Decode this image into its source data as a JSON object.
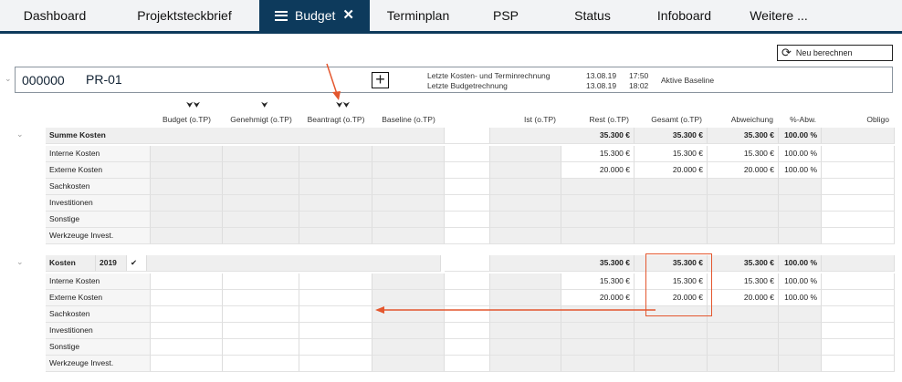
{
  "nav": {
    "tabs": [
      "Dashboard",
      "Projektsteckbrief",
      "Budget",
      "Terminplan",
      "PSP",
      "Status",
      "Infoboard",
      "Weitere ..."
    ],
    "active": 2
  },
  "toolbar": {
    "recalc_label": "Neu berechnen"
  },
  "project": {
    "id": "000000",
    "name": "PR-01",
    "cost_calc_label": "Letzte Kosten- und Terminrechnung",
    "cost_calc_date": "13.08.19",
    "cost_calc_time": "17:50",
    "budget_calc_label": "Letzte Budgetrechnung",
    "budget_calc_date": "13.08.19",
    "budget_calc_time": "18:02",
    "baseline_label": "Aktive Baseline"
  },
  "columns": [
    "Budget (o.TP)",
    "Genehmigt (o.TP)",
    "Beantragt (o.TP)",
    "Baseline (o.TP)",
    "Ist (o.TP)",
    "Rest (o.TP)",
    "Gesamt (o.TP)",
    "Abweichung",
    "%-Abw.",
    "Obligo"
  ],
  "section1": {
    "title": "Summe Kosten",
    "totals": {
      "rest": "35.300 €",
      "gesamt": "35.300 €",
      "abw": "35.300 €",
      "pct": "100.00 %"
    },
    "rows": [
      {
        "label": "Interne Kosten",
        "rest": "15.300 €",
        "gesamt": "15.300 €",
        "abw": "15.300 €",
        "pct": "100.00 %"
      },
      {
        "label": "Externe Kosten",
        "rest": "20.000 €",
        "gesamt": "20.000 €",
        "abw": "20.000 €",
        "pct": "100.00 %"
      },
      {
        "label": "Sachkosten"
      },
      {
        "label": "Investitionen"
      },
      {
        "label": "Sonstige"
      },
      {
        "label": "Werkzeuge Invest."
      }
    ]
  },
  "section2": {
    "title": "Kosten",
    "year": "2019",
    "totals": {
      "rest": "35.300 €",
      "gesamt": "35.300 €",
      "abw": "35.300 €",
      "pct": "100.00 %"
    },
    "rows": [
      {
        "label": "Interne Kosten",
        "rest": "15.300 €",
        "gesamt": "15.300 €",
        "abw": "15.300 €",
        "pct": "100.00 %"
      },
      {
        "label": "Externe Kosten",
        "rest": "20.000 €",
        "gesamt": "20.000 €",
        "abw": "20.000 €",
        "pct": "100.00 %"
      },
      {
        "label": "Sachkosten"
      },
      {
        "label": "Investitionen"
      },
      {
        "label": "Sonstige"
      },
      {
        "label": "Werkzeuge Invest."
      }
    ]
  },
  "colors": {
    "nav_active": "#0d3a5c",
    "annotation": "#e4572e"
  }
}
